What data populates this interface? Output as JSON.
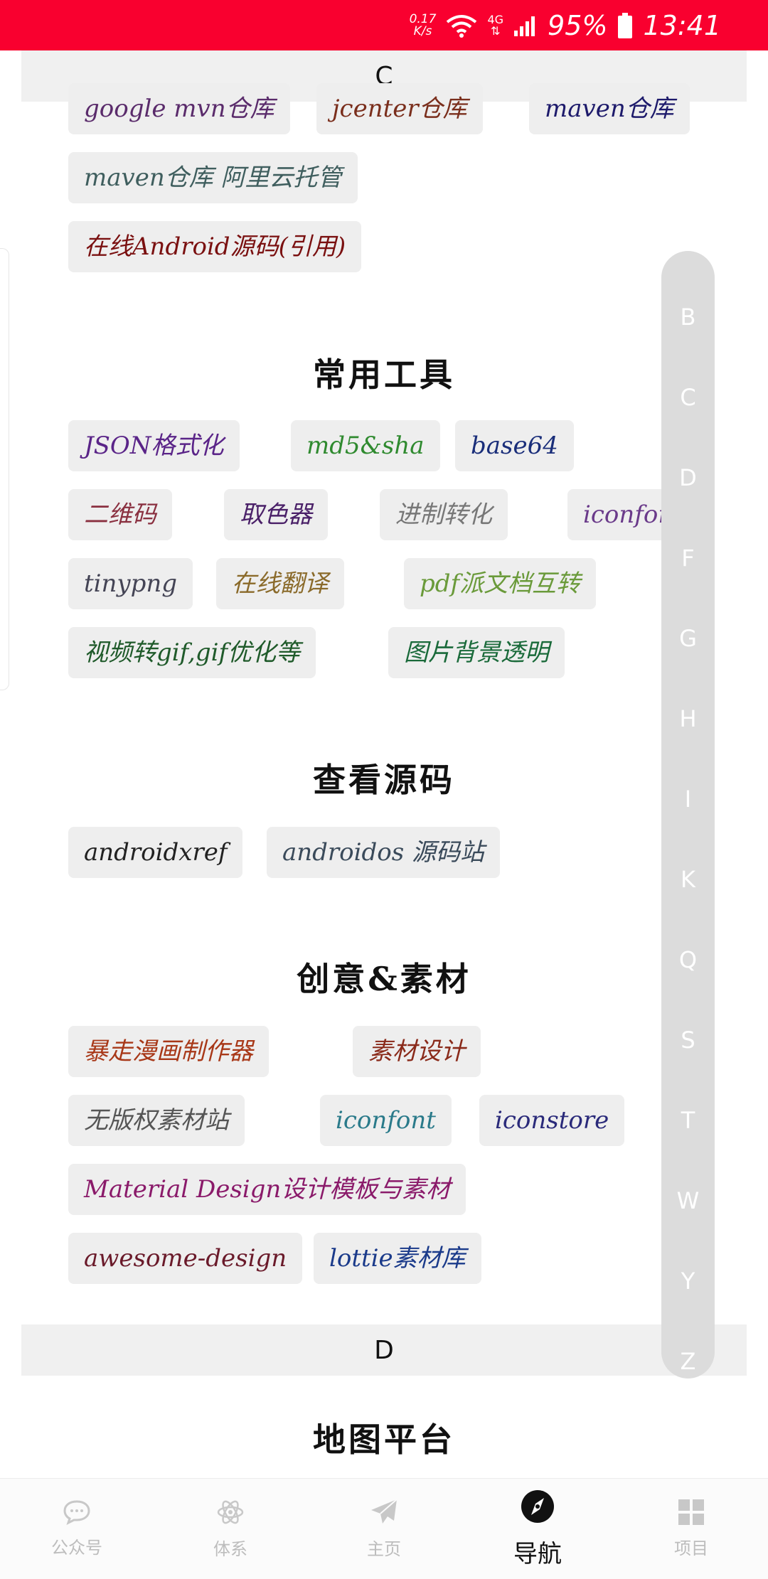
{
  "status_bar": {
    "net_speed_value": "0.17",
    "net_speed_unit": "K/s",
    "network": "4G",
    "battery": "95%",
    "time": "13:41",
    "bg_color": "#f9002f"
  },
  "sections": {
    "c_header": "C",
    "d_header": "D"
  },
  "repo_chips": [
    {
      "label": "google mvn仓库",
      "color": "#5a2b6b"
    },
    {
      "label": "jcenter仓库",
      "color": "#7a2e1c"
    },
    {
      "label": "maven仓库",
      "color": "#1d1a6b"
    },
    {
      "label": "maven仓库 阿里云托管",
      "color": "#3f5e5e"
    },
    {
      "label": "在线Android源码(引用)",
      "color": "#7a1010"
    }
  ],
  "groups": [
    {
      "title": "常用工具",
      "chips": [
        {
          "label": "JSON格式化",
          "color": "#5a2488"
        },
        {
          "label": "md5&sha",
          "color": "#2f8a2f"
        },
        {
          "label": "base64",
          "color": "#1a2e7a"
        },
        {
          "label": "二维码",
          "color": "#8a3040"
        },
        {
          "label": "取色器",
          "color": "#4a2068"
        },
        {
          "label": "进制转化",
          "color": "#777777"
        },
        {
          "label": "iconfont",
          "color": "#6a3a8a"
        },
        {
          "label": "tinypng",
          "color": "#444455"
        },
        {
          "label": "在线翻译",
          "color": "#8a6a2a"
        },
        {
          "label": "pdf派文档互转",
          "color": "#6a9a3a"
        },
        {
          "label": "视频转gif,gif优化等",
          "color": "#1f5a2a"
        },
        {
          "label": "图片背景透明",
          "color": "#1a6a3a"
        }
      ]
    },
    {
      "title": "查看源码",
      "chips": [
        {
          "label": "androidxref",
          "color": "#222222"
        },
        {
          "label": "androidos 源码站",
          "color": "#3a4a5a"
        }
      ]
    },
    {
      "title": "创意&素材",
      "chips": [
        {
          "label": "暴走漫画制作器",
          "color": "#a83818"
        },
        {
          "label": "素材设计",
          "color": "#8a2a1a"
        },
        {
          "label": "无版权素材站",
          "color": "#555555"
        },
        {
          "label": "iconfont",
          "color": "#2a7a8a"
        },
        {
          "label": "iconstore",
          "color": "#2a2a7a"
        },
        {
          "label": "Material Design设计模板与素材",
          "color": "#8a1a6a"
        },
        {
          "label": "awesome-design",
          "color": "#6a1a2a"
        },
        {
          "label": "lottie素材库",
          "color": "#1a3a8a"
        }
      ]
    },
    {
      "title": "地图平台",
      "chips": []
    }
  ],
  "index_bar": [
    "B",
    "C",
    "D",
    "F",
    "G",
    "H",
    "I",
    "K",
    "Q",
    "S",
    "T",
    "W",
    "Y",
    "Z"
  ],
  "bottom_nav": [
    {
      "label": "公众号",
      "icon": "chat-bubble-icon",
      "active": false
    },
    {
      "label": "体系",
      "icon": "atom-icon",
      "active": false
    },
    {
      "label": "主页",
      "icon": "paper-plane-icon",
      "active": false
    },
    {
      "label": "导航",
      "icon": "compass-icon",
      "active": true
    },
    {
      "label": "项目",
      "icon": "grid-icon",
      "active": false
    }
  ]
}
